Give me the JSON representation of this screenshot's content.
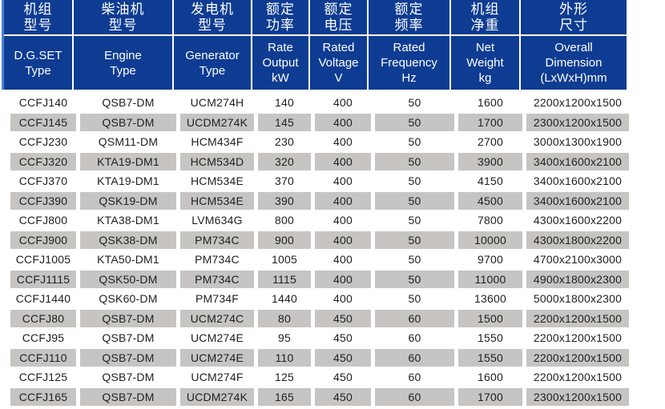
{
  "table": {
    "colors": {
      "header_bg": "#0d3c92",
      "header_text": "#ffffff",
      "header_edge_accent": "#4a82d6",
      "row_alt_bg": "#c6c5c3",
      "row_bg": "#ffffff",
      "body_text": "#1f1f1f"
    },
    "columns": [
      {
        "zh": "机组\n型号",
        "en": "D.G.SET\nType"
      },
      {
        "zh": "柴油机\n型号",
        "en": "Engine\nType"
      },
      {
        "zh": "发电机\n型号",
        "en": "Generator\nType"
      },
      {
        "zh": "额定\n功率",
        "en": "Rate\nOutput\nkW"
      },
      {
        "zh": "额定\n电压",
        "en": "Rated\nVoltage\nV"
      },
      {
        "zh": "额定\n频率",
        "en": "Rated\nFrequency\nHz"
      },
      {
        "zh": "机组\n净重",
        "en": "Net\nWeight\nkg"
      },
      {
        "zh": "外形\n尺寸",
        "en": "Overall\nDimension\n(LxWxH)mm"
      }
    ],
    "rows": [
      [
        "CCFJ140",
        "QSB7-DM",
        "UCM274H",
        "140",
        "400",
        "50",
        "1600",
        "2200x1200x1500"
      ],
      [
        "CCFJ145",
        "QSB7-DM",
        "UCDM274K",
        "145",
        "400",
        "50",
        "1700",
        "2300x1200x1500"
      ],
      [
        "CCFJ230",
        "QSM11-DM",
        "HCM434F",
        "230",
        "400",
        "50",
        "2700",
        "3000x1300x1900"
      ],
      [
        "CCFJ320",
        "KTA19-DM1",
        "HCM534D",
        "320",
        "400",
        "50",
        "3900",
        "3400x1600x2100"
      ],
      [
        "CCFJ370",
        "KTA19-DM1",
        "HCM534E",
        "370",
        "400",
        "50",
        "4150",
        "3400x1600x2100"
      ],
      [
        "CCFJ390",
        "QSK19-DM",
        "HCM534E",
        "390",
        "400",
        "50",
        "4500",
        "3400x1600x2100"
      ],
      [
        "CCFJ800",
        "KTA38-DM1",
        "LVM634G",
        "800",
        "400",
        "50",
        "7800",
        "4300x1600x2200"
      ],
      [
        "CCFJ900",
        "QSK38-DM",
        "PM734C",
        "900",
        "400",
        "50",
        "10000",
        "4300x1800x2200"
      ],
      [
        "CCFJ1005",
        "KTA50-DM1",
        "PM734C",
        "1005",
        "400",
        "50",
        "9700",
        "4700x2100x3000"
      ],
      [
        "CCFJ1115",
        "QSK50-DM",
        "PM734C",
        "1115",
        "400",
        "50",
        "11000",
        "4900x1800x2300"
      ],
      [
        "CCFJ1440",
        "QSK60-DM",
        "PM734F",
        "1440",
        "400",
        "50",
        "13600",
        "5000x1800x2300"
      ],
      [
        "CCFJ80",
        "QSB7-DM",
        "UCM274C",
        "80",
        "450",
        "60",
        "1500",
        "2200x1200x1500"
      ],
      [
        "CCFJ95",
        "QSB7-DM",
        "UCM274E",
        "95",
        "450",
        "60",
        "1550",
        "2200x1200x1500"
      ],
      [
        "CCFJ110",
        "QSB7-DM",
        "UCM274E",
        "110",
        "450",
        "60",
        "1550",
        "2200x1200x1500"
      ],
      [
        "CCFJ125",
        "QSB7-DM",
        "UCM274F",
        "125",
        "450",
        "60",
        "1600",
        "2200x1200x1500"
      ],
      [
        "CCFJ165",
        "QSB7-DM",
        "UCDM274K",
        "165",
        "450",
        "60",
        "1700",
        "2300x1200x1500"
      ]
    ]
  }
}
